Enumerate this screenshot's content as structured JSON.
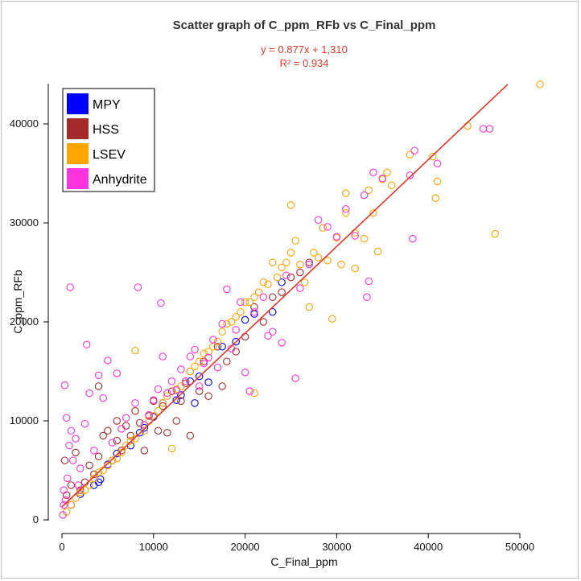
{
  "chart_data": {
    "type": "scatter",
    "title": "Scatter graph of C_ppm_RFb vs C_Final_ppm",
    "xlabel": "C_Final_ppm",
    "ylabel": "C_ppm_RFb",
    "xlim": [
      0,
      53000
    ],
    "ylim": [
      -800,
      44000
    ],
    "x_ticks": [
      0,
      10000,
      20000,
      30000,
      40000,
      50000
    ],
    "y_ticks": [
      0,
      10000,
      20000,
      30000,
      40000
    ],
    "regression": {
      "equation": "y = 0.877x + 1,310",
      "r_squared": "R² = 0.934",
      "slope": 0.877,
      "intercept": 1310,
      "color": "#e0392b"
    },
    "legend_position": "top-left",
    "series": [
      {
        "name": "MPY",
        "color": "#0000ff",
        "points": [
          [
            1000,
            1500
          ],
          [
            2000,
            2600
          ],
          [
            3500,
            3500
          ],
          [
            4000,
            3800
          ],
          [
            4200,
            4100
          ],
          [
            5000,
            5600
          ],
          [
            6000,
            6700
          ],
          [
            7500,
            7500
          ],
          [
            8500,
            8800
          ],
          [
            9000,
            9300
          ],
          [
            10000,
            10400
          ],
          [
            11000,
            11800
          ],
          [
            12500,
            12100
          ],
          [
            13000,
            12600
          ],
          [
            14000,
            14000
          ],
          [
            14500,
            11800
          ],
          [
            15000,
            14500
          ],
          [
            16000,
            13900
          ],
          [
            17500,
            17500
          ],
          [
            19000,
            18000
          ],
          [
            20000,
            20200
          ],
          [
            21000,
            20800
          ],
          [
            23000,
            21000
          ],
          [
            24000,
            24000
          ]
        ]
      },
      {
        "name": "HSS",
        "color": "#a52a2a",
        "points": [
          [
            300,
            6000
          ],
          [
            500,
            2500
          ],
          [
            1000,
            3500
          ],
          [
            1500,
            6800
          ],
          [
            2000,
            3000
          ],
          [
            2500,
            3800
          ],
          [
            3000,
            5500
          ],
          [
            3500,
            4600
          ],
          [
            4000,
            13500
          ],
          [
            4000,
            6400
          ],
          [
            4500,
            8500
          ],
          [
            5000,
            9000
          ],
          [
            5500,
            6000
          ],
          [
            6000,
            8000
          ],
          [
            6000,
            10000
          ],
          [
            6500,
            7000
          ],
          [
            7000,
            9500
          ],
          [
            7500,
            8500
          ],
          [
            8000,
            11000
          ],
          [
            8500,
            9800
          ],
          [
            9000,
            7000
          ],
          [
            9500,
            10500
          ],
          [
            10000,
            12000
          ],
          [
            10500,
            9000
          ],
          [
            11000,
            11500
          ],
          [
            11500,
            8800
          ],
          [
            12000,
            13000
          ],
          [
            12500,
            10000
          ],
          [
            13000,
            12000
          ],
          [
            13500,
            13800
          ],
          [
            14000,
            8500
          ],
          [
            14000,
            15000
          ],
          [
            15000,
            13000
          ],
          [
            15500,
            16000
          ],
          [
            16000,
            12500
          ],
          [
            17000,
            17500
          ],
          [
            17500,
            13500
          ],
          [
            18000,
            16000
          ],
          [
            19000,
            17000
          ],
          [
            20000,
            18500
          ],
          [
            21000,
            21500
          ],
          [
            22000,
            20000
          ],
          [
            23000,
            22500
          ],
          [
            24000,
            23000
          ],
          [
            25000,
            24500
          ],
          [
            26000,
            25000
          ],
          [
            27000,
            26000
          ]
        ]
      },
      {
        "name": "LSEV",
        "color": "#ffa500",
        "points": [
          [
            500,
            800
          ],
          [
            1000,
            1500
          ],
          [
            1500,
            2200
          ],
          [
            2000,
            2800
          ],
          [
            2500,
            3000
          ],
          [
            3000,
            3500
          ],
          [
            3500,
            4200
          ],
          [
            4000,
            4800
          ],
          [
            4500,
            5000
          ],
          [
            5000,
            5500
          ],
          [
            5500,
            6000
          ],
          [
            6000,
            6200
          ],
          [
            6500,
            6800
          ],
          [
            7000,
            7500
          ],
          [
            7500,
            8000
          ],
          [
            8000,
            8200
          ],
          [
            8000,
            17100
          ],
          [
            9000,
            9000
          ],
          [
            9500,
            10000
          ],
          [
            10000,
            10500
          ],
          [
            10500,
            11000
          ],
          [
            11000,
            11800
          ],
          [
            11500,
            12500
          ],
          [
            12000,
            7200
          ],
          [
            12500,
            13200
          ],
          [
            13000,
            13500
          ],
          [
            13500,
            14000
          ],
          [
            14000,
            15000
          ],
          [
            14500,
            15500
          ],
          [
            15000,
            16000
          ],
          [
            15500,
            16800
          ],
          [
            16000,
            17000
          ],
          [
            16500,
            17500
          ],
          [
            17000,
            18000
          ],
          [
            17500,
            19000
          ],
          [
            18000,
            19800
          ],
          [
            18500,
            20000
          ],
          [
            19000,
            20500
          ],
          [
            19500,
            21000
          ],
          [
            20000,
            22000
          ],
          [
            20500,
            22000
          ],
          [
            21000,
            12800
          ],
          [
            21000,
            22500
          ],
          [
            21500,
            23000
          ],
          [
            22000,
            24000
          ],
          [
            22500,
            23800
          ],
          [
            23000,
            26000
          ],
          [
            23500,
            24500
          ],
          [
            24000,
            25500
          ],
          [
            24500,
            26000
          ],
          [
            25000,
            31800
          ],
          [
            25000,
            27000
          ],
          [
            25500,
            28200
          ],
          [
            26000,
            25800
          ],
          [
            26500,
            24000
          ],
          [
            27000,
            21500
          ],
          [
            27500,
            27000
          ],
          [
            28000,
            26500
          ],
          [
            28500,
            29500
          ],
          [
            29000,
            26200
          ],
          [
            29500,
            20300
          ],
          [
            30000,
            28500
          ],
          [
            30500,
            25800
          ],
          [
            31000,
            31000
          ],
          [
            31000,
            33000
          ],
          [
            32000,
            29000
          ],
          [
            32000,
            25400
          ],
          [
            33000,
            28400
          ],
          [
            33500,
            33300
          ],
          [
            34000,
            31000
          ],
          [
            34500,
            27100
          ],
          [
            35000,
            34400
          ],
          [
            35500,
            35100
          ],
          [
            36000,
            33800
          ],
          [
            38000,
            36900
          ],
          [
            40500,
            36700
          ],
          [
            40800,
            32500
          ],
          [
            41000,
            34200
          ],
          [
            44300,
            39800
          ],
          [
            47300,
            28900
          ],
          [
            52200,
            44000
          ]
        ]
      },
      {
        "name": "Anhydrite",
        "color": "#ff33dd",
        "points": [
          [
            100,
            500
          ],
          [
            200,
            1500
          ],
          [
            200,
            3000
          ],
          [
            300,
            13600
          ],
          [
            400,
            2000
          ],
          [
            500,
            10300
          ],
          [
            600,
            4200
          ],
          [
            800,
            7500
          ],
          [
            900,
            23500
          ],
          [
            1000,
            9000
          ],
          [
            1200,
            6000
          ],
          [
            1500,
            8200
          ],
          [
            1800,
            3500
          ],
          [
            2000,
            5200
          ],
          [
            2500,
            9700
          ],
          [
            2700,
            17700
          ],
          [
            3000,
            12800
          ],
          [
            3500,
            7000
          ],
          [
            4000,
            14600
          ],
          [
            4500,
            12300
          ],
          [
            5000,
            16100
          ],
          [
            5500,
            7800
          ],
          [
            6000,
            14800
          ],
          [
            6500,
            9200
          ],
          [
            7000,
            10300
          ],
          [
            8000,
            11800
          ],
          [
            8300,
            23500
          ],
          [
            9000,
            9600
          ],
          [
            9500,
            10600
          ],
          [
            10000,
            12100
          ],
          [
            10500,
            13200
          ],
          [
            10800,
            21900
          ],
          [
            11000,
            16500
          ],
          [
            11500,
            12800
          ],
          [
            12000,
            14000
          ],
          [
            12500,
            13100
          ],
          [
            13000,
            15200
          ],
          [
            13500,
            14000
          ],
          [
            14000,
            16500
          ],
          [
            14500,
            17200
          ],
          [
            15000,
            13500
          ],
          [
            15500,
            15800
          ],
          [
            16000,
            16400
          ],
          [
            16500,
            18200
          ],
          [
            17000,
            15400
          ],
          [
            17500,
            19800
          ],
          [
            18000,
            23300
          ],
          [
            18500,
            17300
          ],
          [
            19000,
            19200
          ],
          [
            19500,
            22000
          ],
          [
            20000,
            14900
          ],
          [
            20500,
            13000
          ],
          [
            21000,
            21000
          ],
          [
            22000,
            22500
          ],
          [
            22500,
            18600
          ],
          [
            23000,
            19000
          ],
          [
            24000,
            17900
          ],
          [
            24500,
            24700
          ],
          [
            25500,
            14300
          ],
          [
            26000,
            23400
          ],
          [
            27000,
            25800
          ],
          [
            28000,
            30300
          ],
          [
            29000,
            29600
          ],
          [
            30000,
            28600
          ],
          [
            31000,
            31400
          ],
          [
            32000,
            28700
          ],
          [
            33000,
            32800
          ],
          [
            33300,
            22500
          ],
          [
            33500,
            24100
          ],
          [
            34000,
            35100
          ],
          [
            35000,
            34500
          ],
          [
            38000,
            34800
          ],
          [
            38300,
            28400
          ],
          [
            38500,
            37300
          ],
          [
            41000,
            36000
          ],
          [
            46000,
            39500
          ],
          [
            46700,
            39500
          ]
        ]
      }
    ]
  }
}
